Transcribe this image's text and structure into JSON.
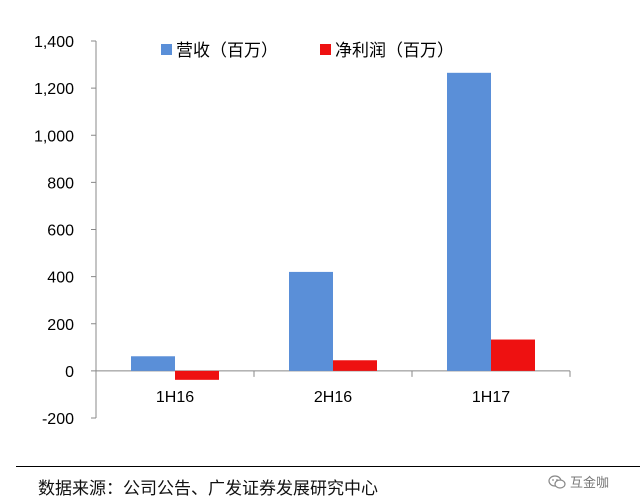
{
  "chart_data": {
    "type": "bar",
    "categories": [
      "1H16",
      "2H16",
      "1H17"
    ],
    "series": [
      {
        "name": "营收（百万）",
        "color": "#5a8fd8",
        "values": [
          62,
          420,
          1265
        ]
      },
      {
        "name": "净利润（百万）",
        "color": "#ee1111",
        "values": [
          -38,
          45,
          133
        ]
      }
    ],
    "ylim": [
      -200,
      1400
    ],
    "yticks": [
      -200,
      0,
      200,
      400,
      600,
      800,
      1000,
      1200,
      1400
    ],
    "ytick_labels": [
      "-200",
      "0",
      "200",
      "400",
      "600",
      "800",
      "1,000",
      "1,200",
      "1,400"
    ],
    "grid": false,
    "legend": "top"
  },
  "source_text": "数据来源：公司公告、广发证券发展研究中心",
  "watermark_text": "互金咖",
  "watermark_icon": "wechat-icon"
}
